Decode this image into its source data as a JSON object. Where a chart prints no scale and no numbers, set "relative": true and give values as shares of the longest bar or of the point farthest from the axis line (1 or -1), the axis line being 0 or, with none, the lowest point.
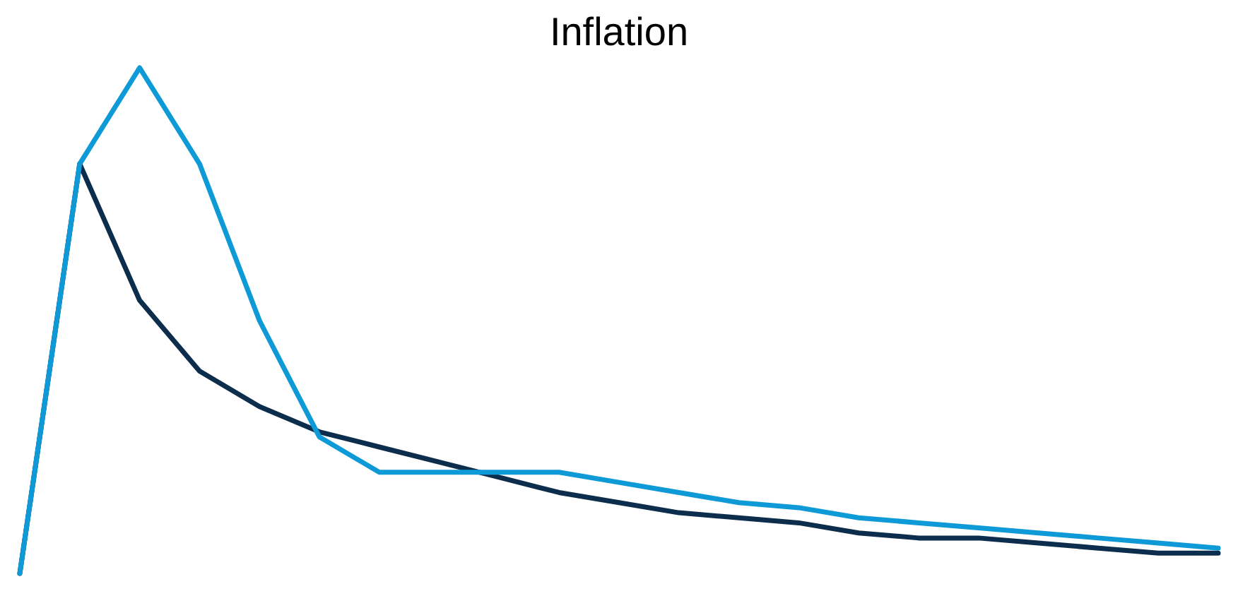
{
  "chart_data": {
    "type": "line",
    "title": "Inflation",
    "relative": true,
    "categories": [
      null,
      null,
      null,
      null,
      null,
      null,
      null,
      null,
      null,
      null,
      null,
      null,
      null,
      null,
      null,
      null,
      null,
      null,
      null,
      null,
      null
    ],
    "series": [
      {
        "color": "#0c2d4c",
        "values": [
          0,
          0.81,
          0.54,
          0.4,
          0.33,
          0.28,
          0.25,
          0.22,
          0.19,
          0.16,
          0.14,
          0.12,
          0.11,
          0.1,
          0.08,
          0.07,
          0.07,
          0.06,
          0.05,
          0.04,
          0.04
        ]
      },
      {
        "color": "#0e9ad7",
        "values": [
          0,
          0.81,
          1,
          0.81,
          0.5,
          0.27,
          0.2,
          0.2,
          0.2,
          0.2,
          0.18,
          0.16,
          0.14,
          0.13,
          0.11,
          0.1,
          0.09,
          0.08,
          0.07,
          0.06,
          0.05
        ]
      }
    ]
  }
}
